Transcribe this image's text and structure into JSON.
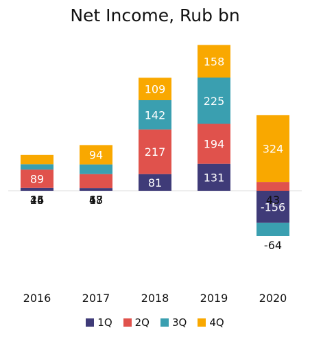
{
  "chart_data": {
    "type": "bar",
    "stacked": true,
    "title": "Net Income, Rub bn",
    "categories": [
      "2016",
      "2017",
      "2018",
      "2019",
      "2020"
    ],
    "series": [
      {
        "name": "1Q",
        "color": "#3f3b78",
        "values": [
          14,
          13,
          81,
          131,
          -156
        ]
      },
      {
        "name": "2Q",
        "color": "#e0524c",
        "values": [
          89,
          68,
          217,
          194,
          43
        ]
      },
      {
        "name": "3Q",
        "color": "#3a9fb0",
        "values": [
          26,
          47,
          142,
          225,
          -64
        ]
      },
      {
        "name": "4Q",
        "color": "#f9a800",
        "values": [
          45,
          94,
          109,
          158,
          324
        ]
      }
    ],
    "ylim": [
      -220,
      720
    ],
    "grid": false,
    "legend_position": "bottom"
  }
}
